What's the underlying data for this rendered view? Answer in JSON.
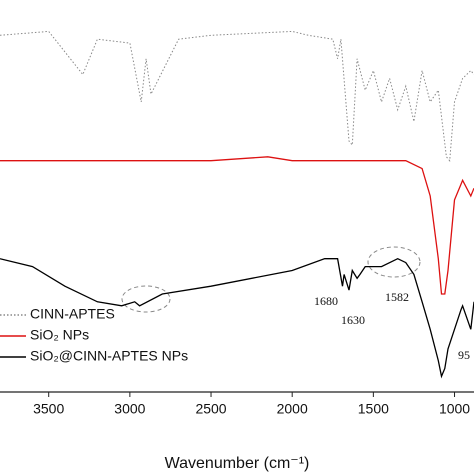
{
  "chart_data": {
    "type": "line",
    "x_label": "Wavenumber (cm⁻¹)",
    "xlim": [
      3800,
      880
    ],
    "ylim": [
      0,
      100
    ],
    "xticks": [
      3500,
      3000,
      2500,
      2000,
      1500,
      1000
    ],
    "series": [
      {
        "name": "CINN-APTES",
        "color": "#888888",
        "dash": "dotted",
        "x": [
          3800,
          3500,
          3290,
          3200,
          3000,
          2930,
          2900,
          2870,
          2700,
          2500,
          2000,
          1900,
          1750,
          1720,
          1700,
          1650,
          1630,
          1600,
          1550,
          1500,
          1450,
          1400,
          1350,
          1300,
          1250,
          1200,
          1150,
          1100,
          1050,
          1030,
          1000,
          950,
          900,
          880
        ],
        "values": [
          91,
          92,
          81,
          90,
          89,
          74,
          85,
          76,
          90,
          91,
          92,
          91,
          90,
          85,
          90,
          64,
          63,
          85,
          77,
          82,
          74,
          80,
          72,
          78,
          69,
          82,
          74,
          77,
          60,
          59,
          74,
          80,
          82,
          81
        ]
      },
      {
        "name": "SiO₂ NPs",
        "color": "#dd1111",
        "dash": "solid",
        "x": [
          3800,
          3500,
          3000,
          2500,
          2150,
          2000,
          1750,
          1300,
          1200,
          1150,
          1100,
          1080,
          1060,
          1040,
          1000,
          960,
          950,
          900,
          880
        ],
        "values": [
          59,
          59,
          59,
          59,
          60,
          59,
          59,
          59,
          57,
          50,
          34,
          25,
          25,
          31,
          49,
          53,
          54,
          50,
          52
        ]
      },
      {
        "name": "SiO₂@CINN-APTES NPs",
        "color": "#000000",
        "dash": "solid",
        "x": [
          3800,
          3600,
          3400,
          3200,
          3050,
          2970,
          2940,
          2800,
          2500,
          2000,
          1800,
          1720,
          1690,
          1680,
          1650,
          1630,
          1600,
          1582,
          1550,
          1450,
          1350,
          1300,
          1250,
          1200,
          1150,
          1100,
          1080,
          1060,
          1040,
          1000,
          960,
          950,
          900,
          880
        ],
        "values": [
          34,
          32,
          27,
          23,
          22,
          23,
          22,
          25,
          27,
          31,
          34,
          34,
          27,
          30,
          26,
          31,
          29,
          30,
          32,
          32,
          34,
          33,
          30,
          23,
          16,
          8,
          4,
          6,
          11,
          16,
          21,
          22,
          16,
          23
        ]
      }
    ],
    "annotations": [
      "1680",
      "1630",
      "1582",
      "95"
    ]
  }
}
